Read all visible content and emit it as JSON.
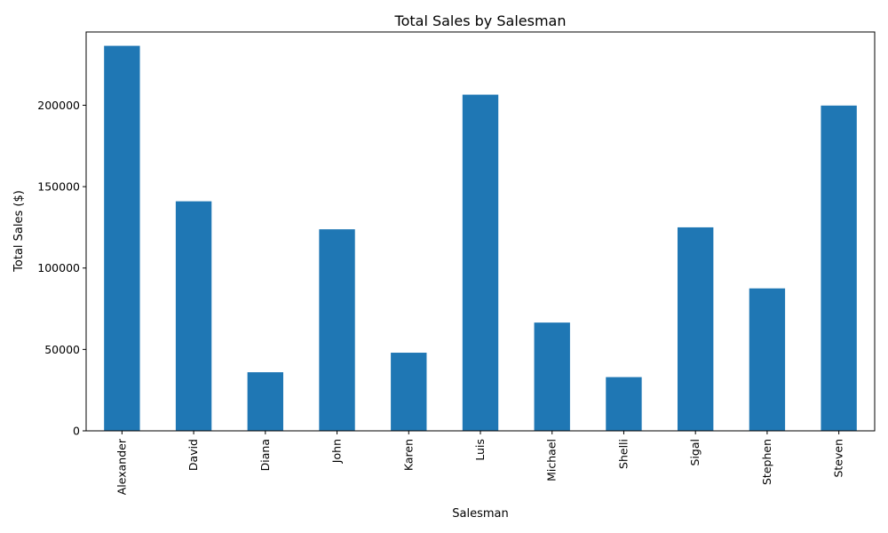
{
  "chart_data": {
    "type": "bar",
    "title": "Total Sales by Salesman",
    "xlabel": "Salesman",
    "ylabel": "Total Sales ($)",
    "categories": [
      "Alexander",
      "David",
      "Diana",
      "John",
      "Karen",
      "Luis",
      "Michael",
      "Shelli",
      "Sigal",
      "Stephen",
      "Steven"
    ],
    "values": [
      236500,
      141000,
      36000,
      123800,
      48000,
      206500,
      66500,
      33000,
      125000,
      87500,
      199800
    ],
    "ylim": [
      0,
      245000
    ],
    "yticks": [
      0,
      50000,
      100000,
      150000,
      200000
    ],
    "bar_color": "#1f77b4",
    "grid": false,
    "legend": "none"
  }
}
